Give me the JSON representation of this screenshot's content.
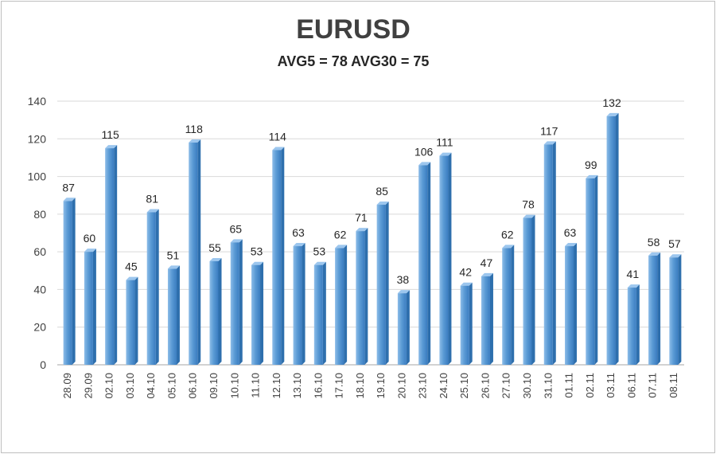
{
  "chart_data": {
    "type": "bar",
    "title": "EURUSD",
    "subtitle": "AVG5 = 78 AVG30 = 75",
    "categories": [
      "28.09",
      "29.09",
      "02.10",
      "03.10",
      "04.10",
      "05.10",
      "06.10",
      "09.10",
      "10.10",
      "11.10",
      "12.10",
      "13.10",
      "16.10",
      "17.10",
      "18.10",
      "19.10",
      "20.10",
      "23.10",
      "24.10",
      "25.10",
      "26.10",
      "27.10",
      "30.10",
      "31.10",
      "01.11",
      "02.11",
      "03.11",
      "06.11",
      "07.11",
      "08.11"
    ],
    "values": [
      87,
      60,
      115,
      45,
      81,
      51,
      118,
      55,
      65,
      53,
      114,
      63,
      53,
      62,
      71,
      85,
      38,
      106,
      111,
      42,
      47,
      62,
      78,
      117,
      63,
      99,
      132,
      41,
      58,
      57
    ],
    "ylim": [
      0,
      140
    ],
    "yticks": [
      0,
      20,
      40,
      60,
      80,
      100,
      120,
      140
    ],
    "grid": true,
    "legend": "none",
    "bar_color": "#5b9bd5",
    "bar_color_dark": "#2e6fad"
  }
}
